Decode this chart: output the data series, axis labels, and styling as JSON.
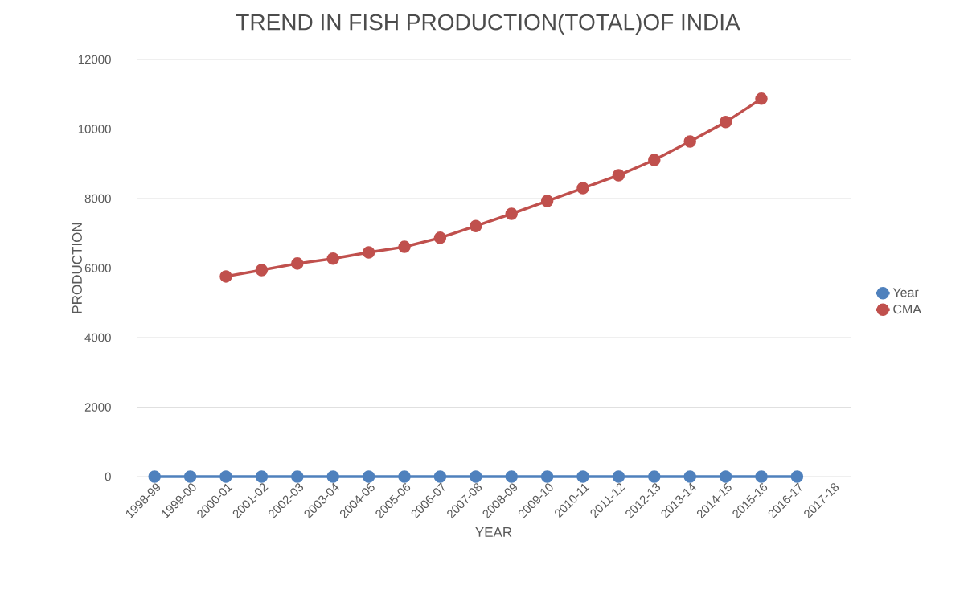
{
  "chart_data": {
    "type": "line",
    "title": "TREND IN FISH PRODUCTION(TOTAL)OF INDIA",
    "xlabel": "YEAR",
    "ylabel": "PRODUCTION",
    "categories": [
      "1998-99",
      "1999-00",
      "2000-01",
      "2001-02",
      "2002-03",
      "2003-04",
      "2004-05",
      "2005-06",
      "2006-07",
      "2007-08",
      "2008-09",
      "2009-10",
      "2010-11",
      "2011-12",
      "2012-13",
      "2013-14",
      "2014-15",
      "2015-16",
      "2016-17",
      "2017-18"
    ],
    "series": [
      {
        "name": "Year",
        "color": "#4f81bd",
        "values": [
          0,
          0,
          0,
          0,
          0,
          0,
          0,
          0,
          0,
          0,
          0,
          0,
          0,
          0,
          0,
          0,
          0,
          0,
          0,
          null
        ]
      },
      {
        "name": "CMA",
        "color": "#c0504d",
        "values": [
          null,
          null,
          5760,
          5940,
          6130,
          6270,
          6450,
          6610,
          6870,
          7210,
          7560,
          7930,
          8300,
          8670,
          9110,
          9640,
          10200,
          10870,
          null,
          null
        ]
      }
    ],
    "ylim": [
      0,
      12000
    ],
    "yticks": [
      0,
      2000,
      4000,
      6000,
      8000,
      10000,
      12000
    ],
    "grid": "y",
    "legend": "right",
    "marker": "circle",
    "line_style": "solid"
  }
}
